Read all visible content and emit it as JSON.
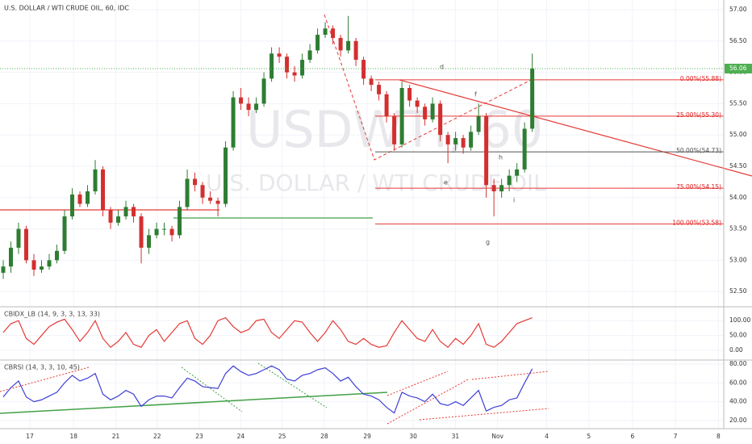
{
  "chart_data": {
    "type": "candlestick",
    "title": "U.S. DOLLAR / WTI CRUDE OIL, 60, IDC",
    "watermark": [
      "USDWTI, 60",
      "U.S. DOLLAR / WTI CRUDE OIL"
    ],
    "up_color": "#2e7d32",
    "down_color": "#d32f2f",
    "ohlc": [
      [
        52.8,
        53.0,
        52.7,
        52.9
      ],
      [
        52.9,
        53.3,
        52.8,
        53.2
      ],
      [
        53.2,
        53.6,
        53.1,
        53.5
      ],
      [
        53.5,
        53.55,
        52.95,
        53.0
      ],
      [
        53.0,
        53.1,
        52.75,
        52.85
      ],
      [
        52.85,
        53.0,
        52.8,
        52.9
      ],
      [
        52.9,
        53.1,
        52.85,
        53.0
      ],
      [
        53.0,
        53.25,
        52.95,
        53.15
      ],
      [
        53.15,
        53.8,
        53.1,
        53.7
      ],
      [
        53.7,
        54.15,
        53.65,
        54.05
      ],
      [
        54.05,
        54.1,
        53.85,
        53.9
      ],
      [
        53.9,
        54.2,
        53.85,
        54.1
      ],
      [
        54.1,
        54.6,
        54.05,
        54.45
      ],
      [
        54.45,
        54.5,
        53.7,
        53.8
      ],
      [
        53.8,
        53.85,
        53.5,
        53.6
      ],
      [
        53.6,
        53.8,
        53.55,
        53.7
      ],
      [
        53.7,
        53.95,
        53.65,
        53.85
      ],
      [
        53.85,
        53.9,
        53.6,
        53.7
      ],
      [
        53.7,
        53.75,
        52.95,
        53.2
      ],
      [
        53.2,
        53.5,
        53.1,
        53.4
      ],
      [
        53.4,
        53.6,
        53.35,
        53.5
      ],
      [
        53.5,
        53.6,
        53.4,
        53.5
      ],
      [
        53.5,
        53.55,
        53.3,
        53.4
      ],
      [
        53.4,
        53.95,
        53.35,
        53.85
      ],
      [
        53.85,
        54.45,
        53.8,
        54.3
      ],
      [
        54.3,
        54.4,
        54.1,
        54.2
      ],
      [
        54.2,
        54.25,
        53.9,
        54.0
      ],
      [
        54.0,
        54.1,
        53.9,
        53.95
      ],
      [
        53.95,
        54.0,
        53.7,
        53.9
      ],
      [
        53.9,
        54.9,
        53.85,
        54.8
      ],
      [
        54.8,
        55.7,
        54.75,
        55.6
      ],
      [
        55.6,
        55.75,
        55.4,
        55.5
      ],
      [
        55.5,
        55.6,
        55.3,
        55.4
      ],
      [
        55.4,
        55.6,
        55.35,
        55.5
      ],
      [
        55.5,
        56.0,
        55.45,
        55.9
      ],
      [
        55.9,
        56.4,
        55.85,
        56.3
      ],
      [
        56.3,
        56.4,
        56.15,
        56.25
      ],
      [
        56.25,
        56.3,
        55.9,
        56.0
      ],
      [
        56.0,
        56.1,
        55.85,
        55.95
      ],
      [
        55.95,
        56.3,
        55.9,
        56.2
      ],
      [
        56.2,
        56.45,
        56.15,
        56.35
      ],
      [
        56.35,
        56.7,
        56.3,
        56.6
      ],
      [
        56.6,
        56.8,
        56.55,
        56.7
      ],
      [
        56.7,
        56.75,
        56.45,
        56.55
      ],
      [
        56.55,
        56.6,
        56.25,
        56.35
      ],
      [
        56.35,
        56.9,
        56.3,
        56.5
      ],
      [
        56.5,
        56.55,
        56.1,
        56.2
      ],
      [
        56.2,
        56.25,
        55.8,
        55.9
      ],
      [
        55.9,
        55.95,
        55.7,
        55.8
      ],
      [
        55.8,
        55.85,
        55.55,
        55.65
      ],
      [
        55.65,
        55.7,
        55.2,
        55.3
      ],
      [
        55.3,
        55.35,
        54.75,
        54.85
      ],
      [
        54.85,
        55.85,
        54.8,
        55.75
      ],
      [
        55.75,
        55.8,
        55.45,
        55.55
      ],
      [
        55.55,
        55.6,
        55.35,
        55.45
      ],
      [
        55.45,
        55.5,
        55.15,
        55.25
      ],
      [
        55.25,
        55.6,
        55.2,
        55.5
      ],
      [
        55.5,
        55.55,
        54.9,
        55.0
      ],
      [
        55.0,
        55.05,
        54.55,
        54.85
      ],
      [
        54.85,
        55.05,
        54.75,
        54.95
      ],
      [
        54.95,
        55.0,
        54.7,
        54.8
      ],
      [
        54.8,
        55.15,
        54.75,
        55.05
      ],
      [
        55.05,
        55.5,
        55.0,
        55.3
      ],
      [
        55.3,
        55.35,
        54.0,
        54.2
      ],
      [
        54.2,
        54.3,
        53.7,
        54.1
      ],
      [
        54.1,
        54.3,
        54.0,
        54.2
      ],
      [
        54.2,
        54.45,
        54.1,
        54.35
      ],
      [
        54.35,
        54.55,
        54.25,
        54.45
      ],
      [
        54.45,
        55.2,
        54.4,
        55.1
      ],
      [
        55.1,
        56.3,
        55.05,
        56.06
      ]
    ],
    "current_price": 56.06,
    "ylim": [
      52.283,
      57.155
    ],
    "yticks": [
      {
        "value": 52.5,
        "label": "52.50"
      },
      {
        "value": 53,
        "label": "53.00"
      },
      {
        "value": 53.5,
        "label": "53.50"
      },
      {
        "value": 54,
        "label": "54.00"
      },
      {
        "value": 54.5,
        "label": "54.50"
      },
      {
        "value": 55,
        "label": "55.00"
      },
      {
        "value": 55.5,
        "label": "55.50"
      },
      {
        "value": 56,
        "label": "56.00"
      },
      {
        "value": 56.5,
        "label": "56.50"
      },
      {
        "value": 57,
        "label": "57.00"
      }
    ],
    "xlim": [
      0,
      94.4
    ],
    "xticks": [
      {
        "value": 3.9,
        "label": "17"
      },
      {
        "value": 9.6,
        "label": "18"
      },
      {
        "value": 15.1,
        "label": "21"
      },
      {
        "value": 20.5,
        "label": "22"
      },
      {
        "value": 26,
        "label": "23"
      },
      {
        "value": 31.4,
        "label": "24"
      },
      {
        "value": 36.8,
        "label": "25"
      },
      {
        "value": 42.3,
        "label": "28"
      },
      {
        "value": 47.9,
        "label": "29"
      },
      {
        "value": 53.9,
        "label": "30"
      },
      {
        "value": 59.4,
        "label": "31"
      },
      {
        "value": 64.9,
        "label": "Nov"
      },
      {
        "value": 71.3,
        "label": "4"
      },
      {
        "value": 76.8,
        "label": "5"
      },
      {
        "value": 82.5,
        "label": "6"
      },
      {
        "value": 88.1,
        "label": "7"
      },
      {
        "value": 93.7,
        "label": "8"
      }
    ],
    "fib": {
      "levels": [
        55.88,
        55.3,
        54.73,
        54.15,
        53.58
      ],
      "value_labels": [
        "0.00%(55.88)",
        "25.00%(55.30)",
        "50.00%(54.73)",
        "75.00%(54.15)",
        "100.00%(53.58)"
      ]
    },
    "annotations": [
      "d",
      "e",
      "f",
      "g",
      "h",
      "i"
    ],
    "indicators": [
      {
        "title": "CBIDX_LB (14, 9, 3, 3, 13, 33)",
        "color": "#e53935",
        "ylim": [
          -33,
          147
        ],
        "yticks": [
          {
            "value": 0,
            "label": "0.00"
          },
          {
            "value": 50,
            "label": "50.00"
          },
          {
            "value": 100,
            "label": "100.00"
          }
        ],
        "values": [
          60,
          90,
          100,
          40,
          20,
          50,
          80,
          95,
          105,
          70,
          30,
          60,
          100,
          40,
          10,
          30,
          60,
          20,
          10,
          50,
          70,
          30,
          60,
          90,
          100,
          40,
          20,
          50,
          100,
          110,
          80,
          60,
          70,
          100,
          105,
          60,
          40,
          70,
          100,
          95,
          60,
          30,
          60,
          100,
          70,
          30,
          20,
          40,
          20,
          10,
          15,
          60,
          100,
          70,
          40,
          30,
          70,
          30,
          10,
          40,
          20,
          50,
          90,
          20,
          10,
          30,
          60,
          90,
          100,
          110
        ]
      },
      {
        "title": "CBRSI (14, 3, 3, 10, 45)",
        "color": "#3f3fd8",
        "ylim": [
          11.3,
          84.3
        ],
        "yticks": [
          {
            "value": 20,
            "label": "20.00"
          },
          {
            "value": 40,
            "label": "40.00"
          },
          {
            "value": 60,
            "label": "60.00"
          },
          {
            "value": 80,
            "label": "80.00"
          }
        ],
        "values": [
          45,
          55,
          62,
          45,
          40,
          42,
          46,
          50,
          60,
          68,
          62,
          65,
          70,
          48,
          42,
          46,
          52,
          48,
          35,
          42,
          46,
          46,
          44,
          55,
          65,
          62,
          56,
          55,
          54,
          70,
          78,
          72,
          68,
          70,
          74,
          78,
          74,
          64,
          62,
          68,
          70,
          74,
          76,
          70,
          62,
          66,
          56,
          48,
          46,
          42,
          34,
          28,
          50,
          46,
          44,
          40,
          48,
          38,
          36,
          40,
          36,
          44,
          52,
          30,
          34,
          36,
          42,
          44,
          60,
          75
        ]
      }
    ]
  }
}
